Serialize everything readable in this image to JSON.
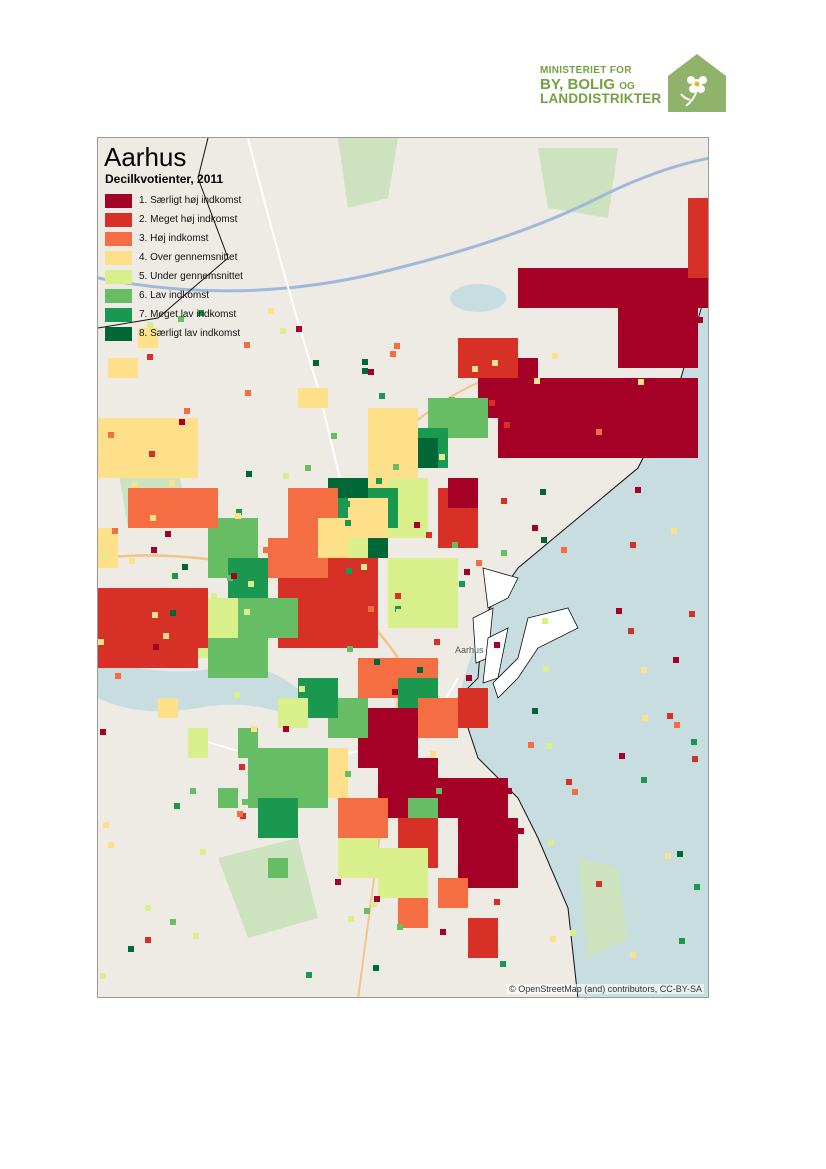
{
  "logo": {
    "line1": "MINISTERIET FOR",
    "line2": "BY, BOLIG",
    "line2_small": "OG",
    "line3": "LANDDISTRIKTER",
    "brand_color": "#73a040"
  },
  "map": {
    "title": "Aarhus",
    "subtitle": "Decilkvotienter, 2011",
    "city_label": "Aarhus",
    "attribution": "© OpenStreetMap (and) contributors, CC-BY-SA",
    "legend": [
      {
        "label": "1. Særligt høj indkomst",
        "color": "#a50026"
      },
      {
        "label": "2. Meget høj indkomst",
        "color": "#d73027"
      },
      {
        "label": "3. Høj indkomst",
        "color": "#f46d43"
      },
      {
        "label": "4. Over gennemsnittet",
        "color": "#fee08b"
      },
      {
        "label": "5. Under gennemsnittet",
        "color": "#d9ef8b"
      },
      {
        "label": "6. Lav indkomst",
        "color": "#66bd63"
      },
      {
        "label": "7. Meget lav indkomst",
        "color": "#1a9850"
      },
      {
        "label": "8. Særligt lav indkomst",
        "color": "#006837"
      }
    ],
    "water_color": "#c8dde0"
  }
}
